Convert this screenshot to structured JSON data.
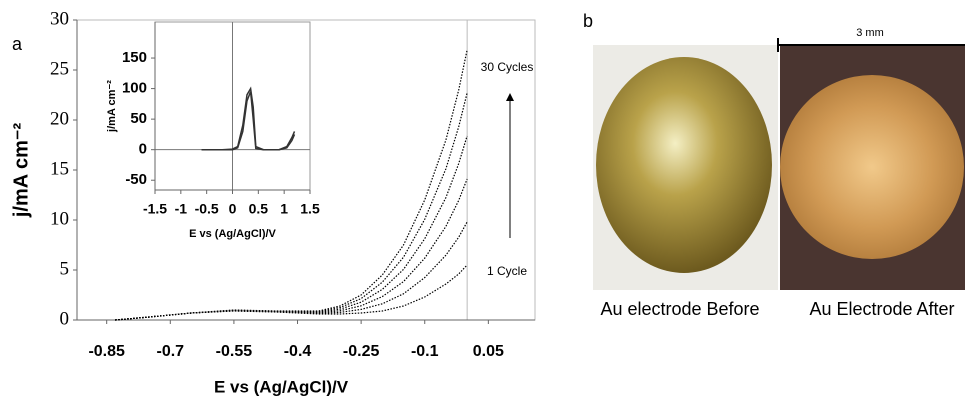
{
  "chart_data": [
    {
      "type": "line",
      "xlabel": "E vs (Ag/AgCl)/V",
      "ylabel": "j/mA cm⁻²",
      "xlim": [
        -0.92,
        0.16
      ],
      "ylim": [
        0,
        30
      ],
      "xticks": [
        -0.85,
        -0.7,
        -0.55,
        -0.4,
        -0.25,
        -0.1,
        0.05
      ],
      "yticks": [
        0,
        5,
        10,
        15,
        20,
        25,
        30
      ],
      "x": [
        -0.83,
        -0.75,
        -0.65,
        -0.55,
        -0.45,
        -0.35,
        -0.3,
        -0.25,
        -0.2,
        -0.15,
        -0.1,
        -0.05,
        -0.02,
        0.0
      ],
      "line_style": "dotted",
      "color": "#000000",
      "series": [
        {
          "values": [
            0,
            0.3,
            0.7,
            0.9,
            0.8,
            0.6,
            0.6,
            0.7,
            0.9,
            1.4,
            2.3,
            3.6,
            4.6,
            5.5
          ]
        },
        {
          "values": [
            0,
            0.3,
            0.7,
            0.92,
            0.82,
            0.66,
            0.76,
            1.06,
            1.62,
            2.62,
            4.24,
            6.48,
            8.28,
            9.8
          ]
        },
        {
          "values": [
            0,
            0.3,
            0.7,
            0.94,
            0.84,
            0.72,
            0.92,
            1.42,
            2.34,
            3.84,
            6.18,
            9.36,
            11.96,
            14.1
          ]
        },
        {
          "values": [
            0,
            0.3,
            0.7,
            0.96,
            0.86,
            0.78,
            1.08,
            1.78,
            3.06,
            5.06,
            8.12,
            12.24,
            15.64,
            18.4
          ]
        },
        {
          "values": [
            0,
            0.3,
            0.7,
            0.98,
            0.88,
            0.84,
            1.24,
            2.14,
            3.78,
            6.28,
            10.06,
            15.12,
            19.32,
            22.7
          ]
        },
        {
          "values": [
            0,
            0.3,
            0.7,
            1.0,
            0.9,
            0.9,
            1.4,
            2.5,
            4.5,
            7.5,
            12,
            18,
            23,
            27
          ]
        }
      ],
      "annotations": [
        "30 Cycles",
        "1 Cycle"
      ]
    },
    {
      "type": "line",
      "xlabel": "E vs (Ag/AgCl)/V",
      "ylabel": "j/mA cm⁻²",
      "xlim": [
        -1.5,
        1.5
      ],
      "ylim": [
        -66,
        209
      ],
      "xticks": [
        -1.5,
        -1,
        -0.5,
        0,
        0.5,
        1,
        1.5
      ],
      "yticks": [
        -50,
        0,
        50,
        100,
        150
      ],
      "x": [
        -0.6,
        -0.2,
        0.0,
        0.1,
        0.2,
        0.28,
        0.35,
        0.4,
        0.45,
        0.6,
        0.9,
        1.05,
        1.15,
        1.2
      ],
      "line_style": "solid",
      "color": "#333333",
      "series": [
        {
          "values": [
            0,
            0,
            1,
            5,
            40,
            90,
            100,
            70,
            5,
            0,
            0,
            5,
            20,
            30
          ]
        },
        {
          "values": [
            0,
            0,
            0,
            3,
            30,
            80,
            95,
            50,
            2,
            0,
            0,
            3,
            15,
            25
          ]
        }
      ]
    }
  ],
  "panel_labels": [
    "a",
    "b"
  ],
  "photos": {
    "scale_bar": "3 mm",
    "captions": [
      "Au electrode Before",
      "Au Electrode After"
    ]
  }
}
